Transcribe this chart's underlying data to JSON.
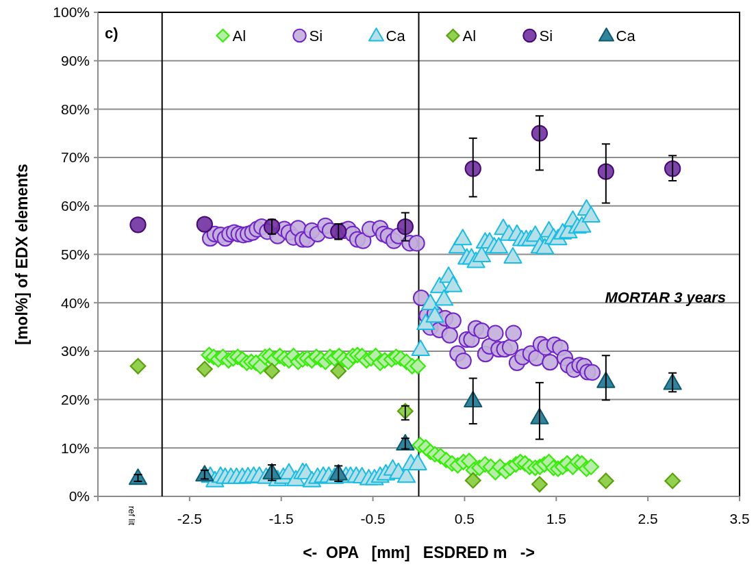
{
  "chart_data": {
    "type": "scatter",
    "title": "c)",
    "xlabel": "<-  OPA   [mm]   ESDRED m   ->",
    "ylabel": "[mol%] of EDX elements",
    "annotations": [
      "MORTAR 3 years",
      "ref lit"
    ],
    "xlim": [
      -3.5,
      3.5
    ],
    "xticks": [
      {
        "value": -3.5,
        "label": null
      },
      -2.5,
      -1.5,
      -0.5,
      0.5,
      1.5,
      2.5,
      3.5
    ],
    "ylim": [
      0,
      100
    ],
    "yticks": [
      {
        "value": 0,
        "label": "0%"
      },
      {
        "value": 10,
        "label": "10%"
      },
      {
        "value": 20,
        "label": "20%"
      },
      {
        "value": 30,
        "label": "30%"
      },
      {
        "value": 40,
        "label": "40%"
      },
      {
        "value": 50,
        "label": "50%"
      },
      {
        "value": 60,
        "label": "60%"
      },
      {
        "value": 70,
        "label": "70%"
      },
      {
        "value": 80,
        "label": "80%"
      },
      {
        "value": 90,
        "label": "90%"
      },
      {
        "value": 100,
        "label": "100%"
      }
    ],
    "grid": "y",
    "legend": "top",
    "ref_lines": [
      {
        "axis": "x",
        "value": -2.8,
        "color": "#000000"
      },
      {
        "axis": "x",
        "value": 0,
        "color": "#000000"
      }
    ],
    "series": [
      {
        "name": "Al",
        "marker": "diamond",
        "color": "#b8ecab",
        "x": [
          -2.287,
          -2.237,
          -2.187,
          -2.137,
          -2.075,
          -2.025,
          -1.975,
          -1.925,
          -1.876,
          -1.826,
          -1.776,
          -1.727,
          -1.677,
          -1.627,
          -1.578,
          -1.515,
          -1.466,
          -1.416,
          -1.366,
          -1.316,
          -1.266,
          -1.216,
          -1.167,
          -1.117,
          -1.067,
          -1.018,
          -0.968,
          -0.918,
          -0.869,
          -0.819,
          -0.769,
          -0.719,
          -0.669,
          -0.619,
          -0.57,
          -0.52,
          -0.47,
          -0.421,
          -0.371,
          -0.296,
          -0.246,
          -0.197,
          -0.134,
          -0.072,
          -0.01,
          0.015,
          0.077,
          0.127,
          0.176,
          0.238,
          0.3,
          0.363,
          0.425,
          0.487,
          0.55,
          0.6,
          0.662,
          0.724,
          0.786,
          0.836,
          0.886,
          0.948,
          0.997,
          1.06,
          1.109,
          1.159,
          1.209,
          1.271,
          1.321,
          1.371,
          1.42,
          1.47,
          1.52,
          1.57,
          1.619,
          1.681,
          1.731,
          1.78,
          1.83,
          1.88
        ],
        "values": [
          29.2,
          28.8,
          28.3,
          28.8,
          28.1,
          28.5,
          28.8,
          28.3,
          27.6,
          27.8,
          27.6,
          26.9,
          28.8,
          29.0,
          28.3,
          29.0,
          28.5,
          28.1,
          29.0,
          27.8,
          28.3,
          28.5,
          28.1,
          28.8,
          28.3,
          27.8,
          28.8,
          28.5,
          29.0,
          28.3,
          27.8,
          29.0,
          29.2,
          29.0,
          28.1,
          28.5,
          29.0,
          27.6,
          28.1,
          28.3,
          28.8,
          28.5,
          27.8,
          26.9,
          26.9,
          10.6,
          10.1,
          9.2,
          8.7,
          8.3,
          7.5,
          6.8,
          6.4,
          7.1,
          7.3,
          5.4,
          5.9,
          6.6,
          6.1,
          5.0,
          6.1,
          5.2,
          5.9,
          6.6,
          7.1,
          6.8,
          6.1,
          5.9,
          6.1,
          6.6,
          7.1,
          5.9,
          5.7,
          6.1,
          6.8,
          6.1,
          7.1,
          6.8,
          5.7,
          6.1
        ]
      },
      {
        "name": "Si",
        "marker": "circle",
        "color": "#c3aedb",
        "x": [
          -2.274,
          -2.224,
          -2.162,
          -2.112,
          -2.063,
          -2.013,
          -1.963,
          -1.913,
          -1.863,
          -1.814,
          -1.764,
          -1.714,
          -1.652,
          -1.54,
          -1.466,
          -1.416,
          -1.366,
          -1.316,
          -1.266,
          -1.216,
          -1.166,
          -1.104,
          -1.018,
          -0.968,
          -0.819,
          -0.769,
          -0.719,
          -0.669,
          -0.607,
          -0.533,
          -0.421,
          -0.384,
          -0.334,
          -0.271,
          -0.222,
          -0.097,
          -0.022,
          0.027,
          0.09,
          0.127,
          0.176,
          0.226,
          0.288,
          0.338,
          0.375,
          0.425,
          0.487,
          0.525,
          0.575,
          0.624,
          0.687,
          0.728,
          0.773,
          0.836,
          0.873,
          0.935,
          0.997,
          1.034,
          1.072,
          1.134,
          1.221,
          1.284,
          1.333,
          1.383,
          1.433,
          1.482,
          1.545,
          1.594,
          1.631,
          1.694,
          1.756,
          1.806,
          1.843,
          1.893
        ],
        "values": [
          53.3,
          54.2,
          54.0,
          53.3,
          54.2,
          54.5,
          54.2,
          54.0,
          54.2,
          54.5,
          55.2,
          55.7,
          54.7,
          53.8,
          55.2,
          54.5,
          53.5,
          55.4,
          53.1,
          53.1,
          54.9,
          54.2,
          55.9,
          54.9,
          54.9,
          55.2,
          54.2,
          53.1,
          52.8,
          55.2,
          55.4,
          54.2,
          53.8,
          52.8,
          53.8,
          52.3,
          52.3,
          41.0,
          37.3,
          34.9,
          37.7,
          34.4,
          36.8,
          33.3,
          36.3,
          29.5,
          28.0,
          32.4,
          32.4,
          34.7,
          34.2,
          29.4,
          31.0,
          33.7,
          30.4,
          30.4,
          30.8,
          33.7,
          27.6,
          28.8,
          29.5,
          28.6,
          31.4,
          30.8,
          27.7,
          31.3,
          30.7,
          28.6,
          27.1,
          26.2,
          27.1,
          26.9,
          25.7,
          25.6
        ]
      },
      {
        "name": "Ca",
        "marker": "triangle",
        "color": "#b7dfe8",
        "x": [
          -2.274,
          -2.224,
          -2.162,
          -2.112,
          -2.05,
          -1.988,
          -1.925,
          -1.863,
          -1.801,
          -1.739,
          -1.664,
          -1.54,
          -1.478,
          -1.416,
          -1.341,
          -1.266,
          -1.229,
          -1.166,
          -1.104,
          -1.042,
          -0.981,
          -0.918,
          -0.794,
          -0.744,
          -0.682,
          -0.619,
          -0.545,
          -0.483,
          -0.421,
          -0.359,
          -0.284,
          -0.222,
          -0.135,
          -0.085,
          -0.01,
          0.02,
          0.077,
          0.127,
          0.176,
          0.226,
          0.276,
          0.325,
          0.375,
          0.425,
          0.48,
          0.525,
          0.575,
          0.624,
          0.687,
          0.724,
          0.773,
          0.823,
          0.873,
          0.922,
          0.985,
          1.027,
          1.072,
          1.122,
          1.172,
          1.221,
          1.271,
          1.321,
          1.376,
          1.42,
          1.47,
          1.52,
          1.57,
          1.631,
          1.681,
          1.731,
          1.78,
          1.83,
          1.88
        ],
        "values": [
          4.2,
          3.3,
          4.2,
          4.0,
          4.0,
          4.0,
          4.0,
          4.1,
          4.2,
          4.2,
          4.0,
          3.5,
          4.0,
          4.9,
          3.5,
          5.0,
          4.9,
          3.3,
          4.0,
          4.2,
          4.2,
          4.0,
          4.2,
          4.2,
          4.2,
          4.1,
          3.7,
          3.7,
          4.2,
          4.7,
          5.7,
          5.0,
          4.2,
          6.8,
          6.8,
          30.4,
          35.8,
          39.9,
          37.3,
          43.4,
          40.8,
          45.5,
          43.6,
          51.6,
          53.3,
          49.3,
          49.3,
          48.6,
          49.8,
          52.6,
          52.6,
          51.6,
          51.6,
          55.4,
          54.2,
          49.5,
          54.2,
          53.1,
          53.1,
          53.1,
          54.0,
          51.6,
          51.4,
          54.9,
          53.5,
          53.3,
          54.5,
          54.7,
          57.1,
          55.7,
          55.9,
          59.4,
          58.0
        ]
      },
      {
        "name": "Al",
        "marker": "diamond",
        "color": "#92d050",
        "x": [
          -3.063,
          -2.336,
          -1.602,
          -0.876,
          -0.147,
          0.592,
          1.318,
          2.042,
          2.769
        ],
        "values": [
          26.9,
          26.3,
          25.9,
          25.9,
          17.6,
          3.3,
          2.5,
          3.2,
          3.2
        ],
        "errors": [
          null,
          null,
          null,
          null,
          [
            15.8,
            18.7
          ],
          null,
          null,
          null,
          null
        ]
      },
      {
        "name": "Si",
        "marker": "circle",
        "color": "#7030a0",
        "x": [
          -3.063,
          -2.336,
          -1.602,
          -0.876,
          -0.147,
          0.592,
          1.318,
          2.042,
          2.769
        ],
        "values": [
          56.1,
          56.2,
          55.7,
          54.7,
          55.7,
          67.7,
          75.0,
          67.1,
          67.7
        ],
        "errors": [
          null,
          null,
          1.5,
          1.6,
          2.9,
          [
            61.9,
            74.0
          ],
          [
            67.4,
            78.6
          ],
          [
            60.6,
            72.8
          ],
          [
            65.2,
            70.4
          ]
        ]
      },
      {
        "name": "Ca",
        "marker": "triangle",
        "color": "#31849b",
        "x": [
          -3.063,
          -2.336,
          -1.602,
          -0.876,
          -0.147,
          0.592,
          1.318,
          2.042,
          2.769
        ],
        "values": [
          3.8,
          4.5,
          4.9,
          4.7,
          10.9,
          19.8,
          16.3,
          23.8,
          23.4
        ],
        "errors": [
          0.7,
          0.9,
          1.6,
          1.6,
          1.1,
          [
            15.0,
            24.4
          ],
          [
            11.8,
            23.5
          ],
          [
            19.9,
            29.1
          ],
          [
            21.6,
            25.5
          ]
        ]
      }
    ]
  }
}
